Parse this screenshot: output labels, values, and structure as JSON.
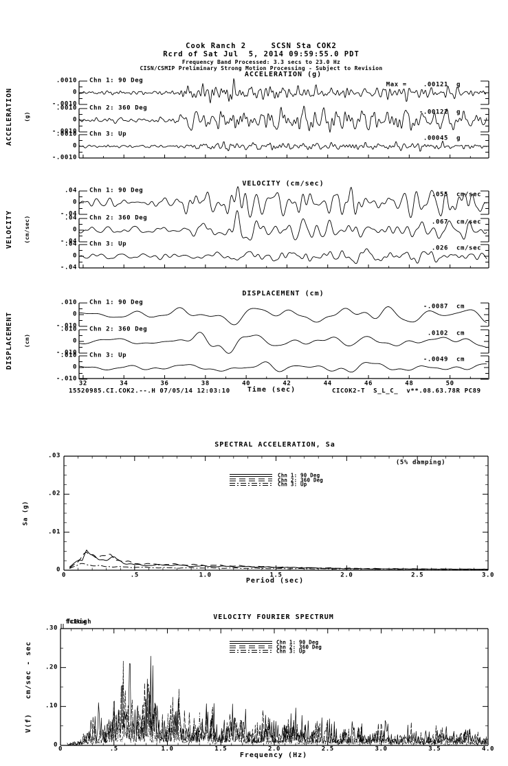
{
  "header": {
    "line1": "Cook Ranch 2     SCSN Sta COK2",
    "line2": "Rcrd of Sat Jul  5, 2014 09:59:55.0 PDT",
    "line3": "Frequency Band Processed: 3.3 secs to 23.0 Hz",
    "line4": "CISN/CSMIP Preliminary Strong Motion Processing - Subject to Revision"
  },
  "footer": {
    "left": "15520985.CI.COK2.--.H 07/05/14 12:03:10",
    "right": "CICOK2-T  S_L_C_  v**.08.63.78R PC89"
  },
  "colors": {
    "ink": "#000000",
    "paper": "#ffffff"
  },
  "chart_data": {
    "time_axis": {
      "xlabel": "Time (sec)",
      "xlim": [
        31.8,
        51.8
      ],
      "major_ticks": [
        "32",
        "34",
        "36",
        "38",
        "40",
        "42",
        "44",
        "46",
        "48",
        "50"
      ]
    },
    "acceleration": {
      "type": "line",
      "title": "ACCELERATION (g)",
      "side_label": "ACCELERATION",
      "side_units": "(g)",
      "full_scale": 0.001,
      "scale_ticks": [
        ".0010",
        "0",
        "-.0010"
      ],
      "freq_band_hz": [
        1.0,
        8.0
      ],
      "channels": [
        {
          "label": "Chn 1: 90 Deg",
          "peak": 0.00121,
          "peak_label": "Max =    .00121",
          "units": "g",
          "seed": 11,
          "envelope": [
            [
              31.8,
              0.18
            ],
            [
              36.3,
              0.2
            ],
            [
              37.5,
              1.0
            ],
            [
              40,
              0.95
            ],
            [
              43,
              0.8
            ],
            [
              47,
              0.75
            ],
            [
              51.8,
              0.62
            ]
          ]
        },
        {
          "label": "Chn 2: 360 Deg",
          "peak": 0.00122,
          "peak_label": "-.00122",
          "units": "g",
          "seed": 22,
          "envelope": [
            [
              31.8,
              0.17
            ],
            [
              36.5,
              0.2
            ],
            [
              37.3,
              1.0
            ],
            [
              39,
              0.9
            ],
            [
              42,
              0.85
            ],
            [
              45,
              0.75
            ],
            [
              48,
              0.7
            ],
            [
              51.8,
              0.6
            ]
          ]
        },
        {
          "label": "Chn 3: Up",
          "peak": 0.00045,
          "peak_label": ".00045",
          "units": "g",
          "seed": 33,
          "envelope": [
            [
              31.8,
              0.3
            ],
            [
              36.5,
              0.35
            ],
            [
              38,
              0.8
            ],
            [
              39.5,
              1.0
            ],
            [
              42,
              0.8
            ],
            [
              45,
              0.75
            ],
            [
              48,
              0.85
            ],
            [
              51.8,
              0.6
            ]
          ]
        }
      ]
    },
    "velocity": {
      "type": "line",
      "title": "VELOCITY (cm/sec)",
      "side_label": "VELOCITY",
      "side_units": "(cm/sec)",
      "full_scale": 0.04,
      "scale_ticks": [
        ".04",
        "0",
        "-.04"
      ],
      "freq_band_hz": [
        0.5,
        3.5
      ],
      "channels": [
        {
          "label": "Chn 1: 90 Deg",
          "peak": 0.055,
          "peak_label": ".055",
          "units": "cm/sec",
          "seed": 44,
          "envelope": [
            [
              31.8,
              0.25
            ],
            [
              36.5,
              0.3
            ],
            [
              37.5,
              0.8
            ],
            [
              39,
              1.0
            ],
            [
              41,
              0.9
            ],
            [
              44,
              0.85
            ],
            [
              47,
              0.8
            ],
            [
              50,
              0.9
            ],
            [
              51.8,
              0.85
            ]
          ]
        },
        {
          "label": "Chn 2: 360 Deg",
          "peak": 0.067,
          "peak_label": ".067",
          "units": "cm/sec",
          "seed": 55,
          "envelope": [
            [
              31.8,
              0.2
            ],
            [
              36.8,
              0.25
            ],
            [
              38,
              0.9
            ],
            [
              39.3,
              1.0
            ],
            [
              41,
              0.85
            ],
            [
              44,
              0.9
            ],
            [
              47,
              0.7
            ],
            [
              50,
              0.8
            ],
            [
              51.8,
              0.7
            ]
          ]
        },
        {
          "label": "Chn 3: Up",
          "peak": 0.026,
          "peak_label": ".026",
          "units": "cm/sec",
          "seed": 66,
          "envelope": [
            [
              31.8,
              0.3
            ],
            [
              37,
              0.35
            ],
            [
              38.5,
              0.7
            ],
            [
              40,
              0.8
            ],
            [
              42,
              1.0
            ],
            [
              44,
              0.8
            ],
            [
              47,
              0.9
            ],
            [
              50,
              0.8
            ],
            [
              51.8,
              0.7
            ]
          ]
        }
      ]
    },
    "displacement": {
      "type": "line",
      "title": "DISPLACEMENT (cm)",
      "side_label": "DISPLACEMENT",
      "side_units": "(cm)",
      "full_scale": 0.01,
      "scale_ticks": [
        ".010",
        "0",
        "-.010"
      ],
      "freq_band_hz": [
        0.2,
        1.1
      ],
      "channels": [
        {
          "label": "Chn 1: 90 Deg",
          "peak": 0.0087,
          "peak_label": "-.0087",
          "units": "cm",
          "seed": 77,
          "envelope": [
            [
              31.8,
              0.3
            ],
            [
              36,
              0.35
            ],
            [
              37,
              0.8
            ],
            [
              38.5,
              0.9
            ],
            [
              39.5,
              1.0
            ],
            [
              41,
              0.8
            ],
            [
              44,
              0.85
            ],
            [
              46.5,
              0.9
            ],
            [
              49,
              0.8
            ],
            [
              51.8,
              0.7
            ]
          ]
        },
        {
          "label": "Chn 2: 360 Deg",
          "peak": 0.0102,
          "peak_label": ".0102",
          "units": "cm",
          "seed": 88,
          "envelope": [
            [
              31.8,
              0.2
            ],
            [
              36.5,
              0.3
            ],
            [
              37.3,
              0.8
            ],
            [
              38.2,
              1.0
            ],
            [
              38.8,
              1.0
            ],
            [
              40,
              0.5
            ],
            [
              42,
              0.5
            ],
            [
              44,
              0.6
            ],
            [
              46,
              0.55
            ],
            [
              48,
              0.5
            ],
            [
              51.8,
              0.6
            ]
          ]
        },
        {
          "label": "Chn 3: Up",
          "peak": 0.0049,
          "peak_label": "-.0049",
          "units": "cm",
          "seed": 99,
          "envelope": [
            [
              31.8,
              0.4
            ],
            [
              37,
              0.5
            ],
            [
              39,
              0.8
            ],
            [
              41,
              1.0
            ],
            [
              44,
              0.7
            ],
            [
              47,
              0.8
            ],
            [
              50,
              0.7
            ],
            [
              51.8,
              0.6
            ]
          ]
        }
      ]
    },
    "spectral_acceleration": {
      "type": "line",
      "title": "SPECTRAL ACCELERATION, Sa",
      "annotation": "(5% damping)",
      "xlabel": "Period (sec)",
      "ylabel": "Sa (g)",
      "xlim": [
        0,
        3.0
      ],
      "ylim": [
        0,
        0.03
      ],
      "x_ticks": [
        "0",
        ".5",
        "1.0",
        "1.5",
        "2.0",
        "2.5",
        "3.0"
      ],
      "y_ticks": [
        "0",
        ".01",
        ".02",
        ".03"
      ],
      "legend": [
        {
          "label": "Chn 1: 90 Deg",
          "style": "solid"
        },
        {
          "label": "Chn 2: 360 Deg",
          "style": "long-dash"
        },
        {
          "label": "Chn 3: Up",
          "style": "dash-dot"
        }
      ],
      "series": [
        {
          "name": "Chn 1: 90 Deg",
          "style": "solid",
          "points": [
            [
              0.04,
              0.0008
            ],
            [
              0.08,
              0.002
            ],
            [
              0.11,
              0.0032
            ],
            [
              0.13,
              0.0028
            ],
            [
              0.16,
              0.0052
            ],
            [
              0.19,
              0.0038
            ],
            [
              0.25,
              0.003
            ],
            [
              0.3,
              0.0028
            ],
            [
              0.36,
              0.0032
            ],
            [
              0.42,
              0.002
            ],
            [
              0.5,
              0.0014
            ],
            [
              0.6,
              0.0013
            ],
            [
              0.75,
              0.0014
            ],
            [
              0.9,
              0.0011
            ],
            [
              1.1,
              0.001
            ],
            [
              1.3,
              0.0009
            ],
            [
              1.6,
              0.0007
            ],
            [
              2.0,
              0.0004
            ],
            [
              2.5,
              0.0003
            ],
            [
              3.0,
              0.00025
            ]
          ]
        },
        {
          "name": "Chn 2: 360 Deg",
          "style": "long-dash",
          "points": [
            [
              0.04,
              0.0007
            ],
            [
              0.08,
              0.0018
            ],
            [
              0.12,
              0.003
            ],
            [
              0.16,
              0.0045
            ],
            [
              0.2,
              0.004
            ],
            [
              0.27,
              0.0036
            ],
            [
              0.33,
              0.0038
            ],
            [
              0.4,
              0.0025
            ],
            [
              0.5,
              0.0018
            ],
            [
              0.65,
              0.0015
            ],
            [
              0.8,
              0.0015
            ],
            [
              1.0,
              0.0013
            ],
            [
              1.25,
              0.0011
            ],
            [
              1.5,
              0.0008
            ],
            [
              1.8,
              0.0006
            ],
            [
              2.2,
              0.0004
            ],
            [
              2.7,
              0.0003
            ],
            [
              3.0,
              0.00025
            ]
          ]
        },
        {
          "name": "Chn 3: Up",
          "style": "dash-dot",
          "points": [
            [
              0.04,
              0.0005
            ],
            [
              0.08,
              0.001
            ],
            [
              0.12,
              0.0016
            ],
            [
              0.15,
              0.0018
            ],
            [
              0.2,
              0.0012
            ],
            [
              0.3,
              0.001
            ],
            [
              0.45,
              0.0008
            ],
            [
              0.6,
              0.0007
            ],
            [
              0.8,
              0.0006
            ],
            [
              1.0,
              0.0006
            ],
            [
              1.3,
              0.0005
            ],
            [
              1.7,
              0.0004
            ],
            [
              2.2,
              0.0003
            ],
            [
              3.0,
              0.0002
            ]
          ]
        }
      ]
    },
    "fourier_spectrum": {
      "type": "line",
      "title": "VELOCITY FOURIER SPECTRUM",
      "xlabel": "Frequency (Hz)",
      "ylabel": "V(f)   cm/sec - sec",
      "xlim": [
        0,
        4.0
      ],
      "ylim": [
        0,
        0.3
      ],
      "x_ticks": [
        "0",
        ".5",
        "1.0",
        "1.5",
        "2.0",
        "2.5",
        "3.0",
        "3.5",
        "4.0"
      ],
      "y_ticks": [
        "0",
        ".10",
        ".20",
        ".30"
      ],
      "corner_labels": [
        "fcLow",
        "fcHigh"
      ],
      "legend": [
        {
          "label": "Chn 1: 90 Deg",
          "style": "solid"
        },
        {
          "label": "Chn 2: 360 Deg",
          "style": "long-dash"
        },
        {
          "label": "Chn 3: Up",
          "style": "dash-dot"
        }
      ],
      "peak": {
        "frequency_hz": 0.65,
        "value": 0.21
      },
      "envelope": [
        [
          0.05,
          0.002
        ],
        [
          0.2,
          0.02
        ],
        [
          0.35,
          0.06
        ],
        [
          0.5,
          0.1
        ],
        [
          0.6,
          0.13
        ],
        [
          0.7,
          0.12
        ],
        [
          0.85,
          0.13
        ],
        [
          1.0,
          0.1
        ],
        [
          1.2,
          0.09
        ],
        [
          1.5,
          0.075
        ],
        [
          1.8,
          0.06
        ],
        [
          2.1,
          0.055
        ],
        [
          2.5,
          0.045
        ],
        [
          3.0,
          0.04
        ],
        [
          3.5,
          0.035
        ],
        [
          4.0,
          0.03
        ]
      ],
      "series_seeds": [
        7,
        8,
        9
      ]
    }
  }
}
